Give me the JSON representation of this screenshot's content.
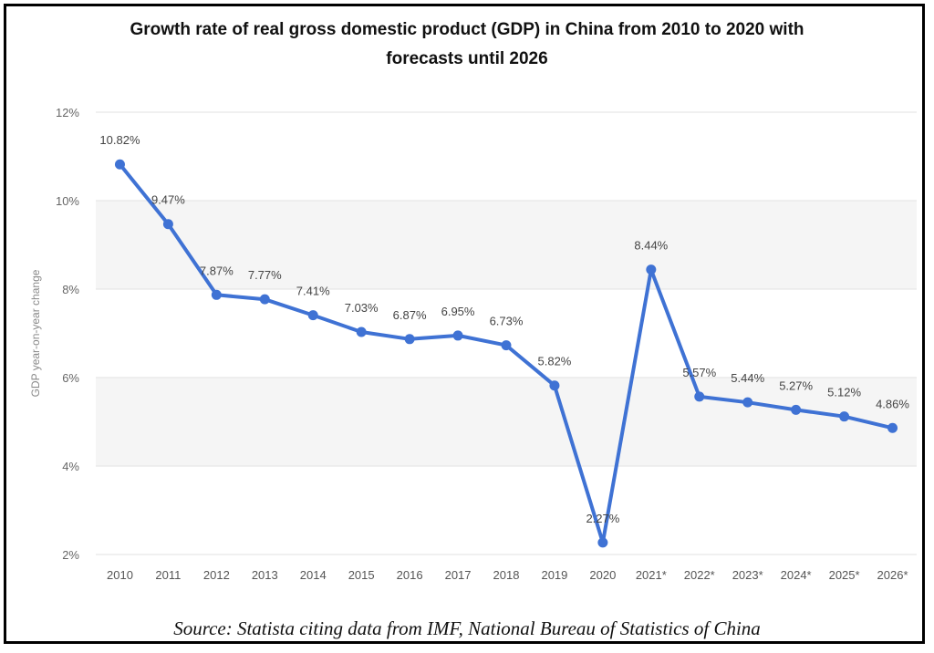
{
  "chart_data": {
    "type": "line",
    "title_lines": [
      "Growth rate of real gross domestic product (GDP) in China from 2010 to 2020 with",
      "forecasts until 2026"
    ],
    "categories": [
      "2010",
      "2011",
      "2012",
      "2013",
      "2014",
      "2015",
      "2016",
      "2017",
      "2018",
      "2019",
      "2020",
      "2021*",
      "2022*",
      "2023*",
      "2024*",
      "2025*",
      "2026*"
    ],
    "series": [
      {
        "name": "GDP year-on-year change",
        "values": [
          10.82,
          9.47,
          7.87,
          7.77,
          7.41,
          7.03,
          6.87,
          6.95,
          6.73,
          5.82,
          2.27,
          8.44,
          5.57,
          5.44,
          5.27,
          5.12,
          4.86
        ],
        "labels": [
          "10.82%",
          "9.47%",
          "7.87%",
          "7.77%",
          "7.41%",
          "7.03%",
          "6.87%",
          "6.95%",
          "6.73%",
          "5.82%",
          "2.27%",
          "8.44%",
          "5.57%",
          "5.44%",
          "5.27%",
          "5.12%",
          "4.86%"
        ],
        "color": "#3f72d4"
      }
    ],
    "ylabel": "GDP year-on-year change",
    "xlabel": "",
    "ylim": [
      2,
      12
    ],
    "yticks": [
      2,
      4,
      6,
      8,
      10,
      12
    ],
    "ytick_labels": [
      "2%",
      "4%",
      "6%",
      "8%",
      "10%",
      "12%"
    ],
    "grid": true,
    "band_color": "#f5f5f5",
    "grid_color": "#e2e2e2"
  },
  "source": "Source: Statista citing data from IMF, National Bureau of Statistics of China"
}
